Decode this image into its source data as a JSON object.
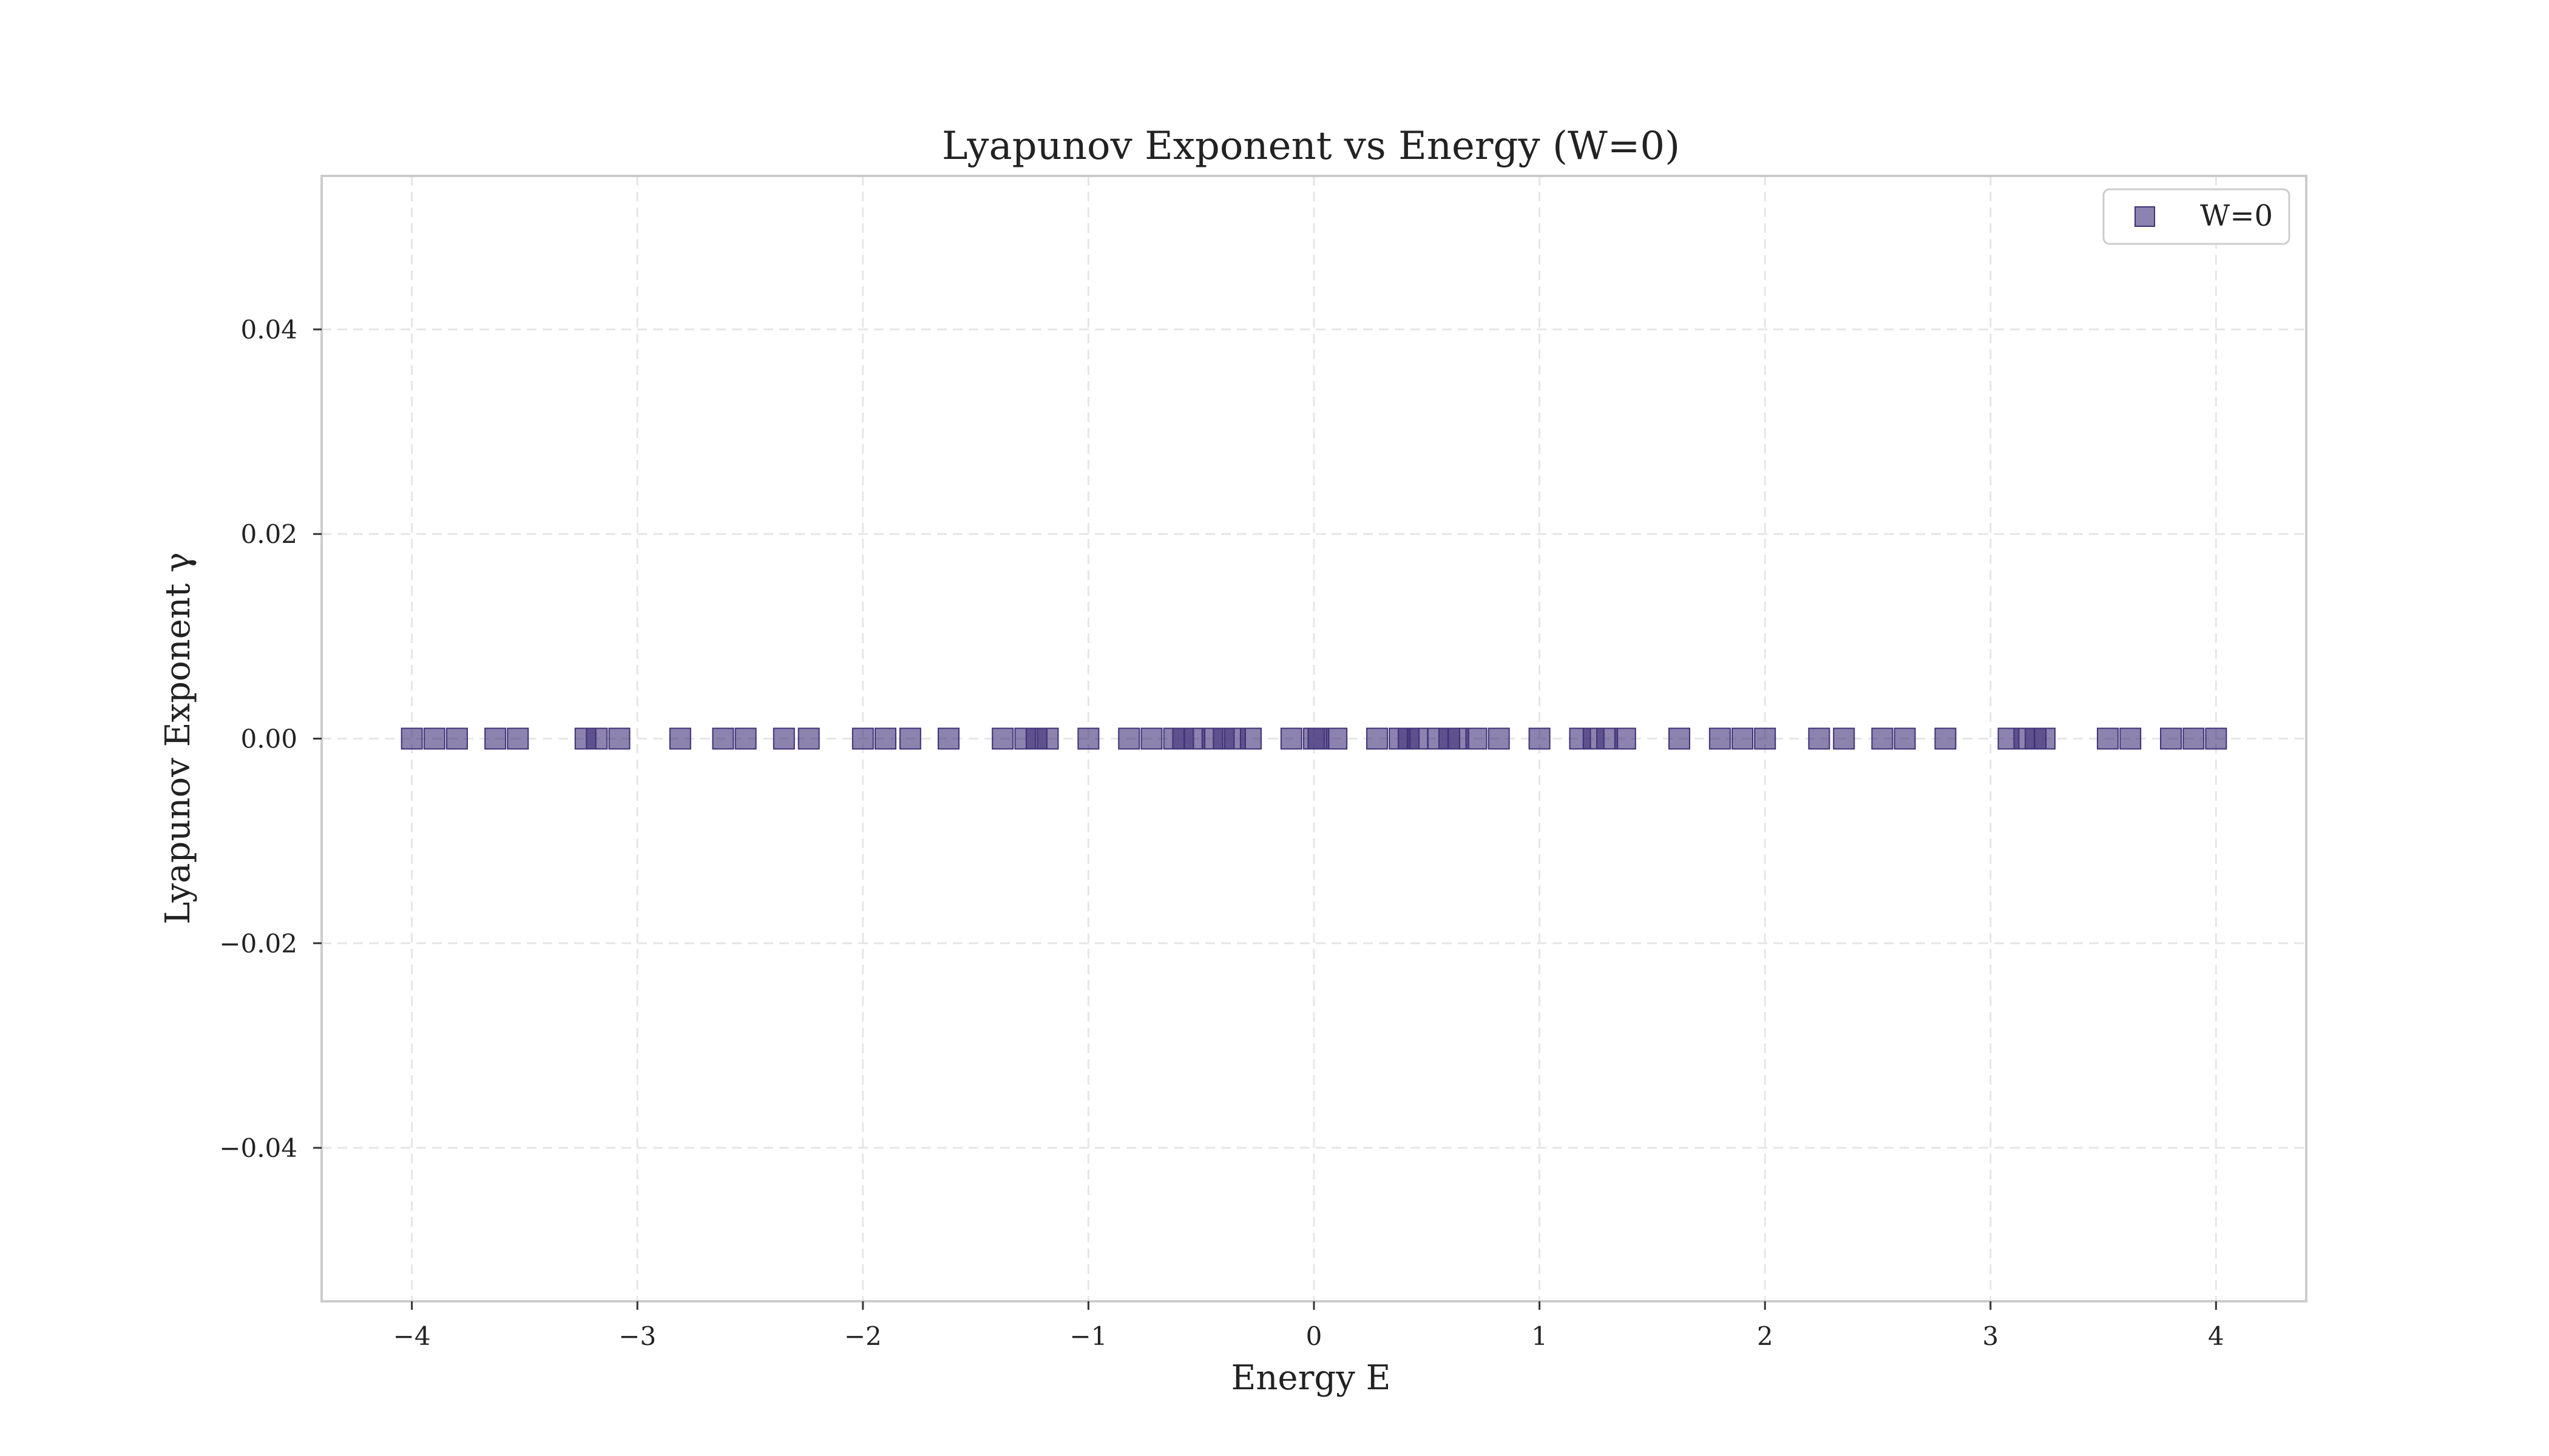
{
  "chart_data": {
    "type": "scatter",
    "title": "Lyapunov Exponent vs Energy (W=0)",
    "xlabel": "Energy E",
    "ylabel": "Lyapunov Exponent γ",
    "xlim": [
      -4.4,
      4.4
    ],
    "ylim": [
      -0.055,
      0.055
    ],
    "x_ticks": [
      -4,
      -3,
      -2,
      -1,
      0,
      1,
      2,
      3,
      4
    ],
    "x_tick_labels": [
      "−4",
      "−3",
      "−2",
      "−1",
      "0",
      "1",
      "2",
      "3",
      "4"
    ],
    "y_ticks": [
      -0.04,
      -0.02,
      0.0,
      0.02,
      0.04
    ],
    "y_tick_labels": [
      "−0.04",
      "−0.02",
      "0.00",
      "0.02",
      "0.04"
    ],
    "grid": true,
    "legend_position": "top-right",
    "series": [
      {
        "name": "W=0",
        "color": "#3f3178",
        "marker": "square",
        "x": [
          -4.0,
          -3.9,
          -3.8,
          -3.63,
          -3.53,
          -3.23,
          -3.18,
          -3.08,
          -2.81,
          -2.62,
          -2.52,
          -2.35,
          -2.24,
          -2.0,
          -1.9,
          -1.79,
          -1.62,
          -1.38,
          -1.28,
          -1.23,
          -1.18,
          -1.0,
          -0.82,
          -0.72,
          -0.62,
          -0.58,
          -0.53,
          -0.45,
          -0.4,
          -0.35,
          -0.28,
          -0.1,
          0.0,
          0.02,
          0.1,
          0.28,
          0.38,
          0.42,
          0.46,
          0.55,
          0.6,
          0.64,
          0.72,
          0.82,
          1.0,
          1.18,
          1.24,
          1.3,
          1.38,
          1.62,
          1.8,
          1.9,
          2.0,
          2.24,
          2.35,
          2.52,
          2.62,
          2.8,
          3.08,
          3.15,
          3.2,
          3.24,
          3.52,
          3.62,
          3.8,
          3.9,
          4.0
        ],
        "y": [
          0,
          0,
          0,
          0,
          0,
          0,
          0,
          0,
          0,
          0,
          0,
          0,
          0,
          0,
          0,
          0,
          0,
          0,
          0,
          0,
          0,
          0,
          0,
          0,
          0,
          0,
          0,
          0,
          0,
          0,
          0,
          0,
          0,
          0,
          0,
          0,
          0,
          0,
          0,
          0,
          0,
          0,
          0,
          0,
          0,
          0,
          0,
          0,
          0,
          0,
          0,
          0,
          0,
          0,
          0,
          0,
          0,
          0,
          0,
          0,
          0,
          0,
          0,
          0,
          0,
          0,
          0
        ]
      }
    ]
  }
}
